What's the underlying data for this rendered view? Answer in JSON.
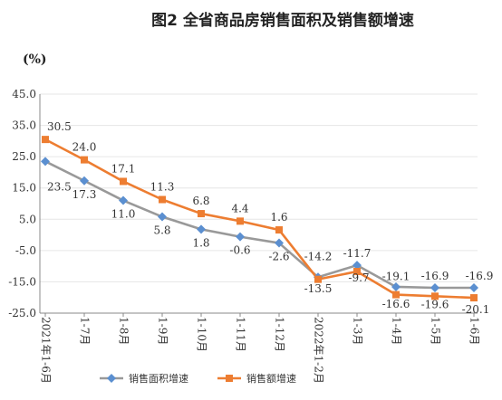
{
  "chart_data": {
    "type": "line",
    "title": "图2 全省商品房销售面积及销售额增速",
    "ylabel": "(%)",
    "xlabel": "",
    "ylim": [
      -25,
      45
    ],
    "yticks": [
      "45.0",
      "35.0",
      "25.0",
      "15.0",
      "5.0",
      "-5.0",
      "-15.0",
      "-25.0"
    ],
    "ytick_values": [
      45,
      35,
      25,
      15,
      5,
      -5,
      -15,
      -25
    ],
    "categories": [
      "2021年1-6月",
      "1-7月",
      "1-8月",
      "1-9月",
      "1-10月",
      "1-11月",
      "1-12月",
      "2022年1-2月",
      "1-3月",
      "1-4月",
      "1-5月",
      "1-6月"
    ],
    "legend_position": "bottom",
    "grid": true,
    "series": [
      {
        "name": "销售面积增速",
        "color": "#5b8fd0",
        "marker": "diamond",
        "values": [
          23.5,
          17.3,
          11.0,
          5.8,
          1.8,
          -0.6,
          -2.6,
          -13.5,
          -9.7,
          -16.6,
          -16.9,
          -16.9
        ],
        "labels": [
          "23.5",
          "17.3",
          "11.0",
          "5.8",
          "1.8",
          "-0.6",
          "-2.6",
          "-13.5",
          "-9.7",
          "-16.6",
          "-16.9",
          "-16.9"
        ]
      },
      {
        "name": "销售额增速",
        "color": "#ed7d31",
        "marker": "square",
        "values": [
          30.5,
          24.0,
          17.1,
          11.3,
          6.8,
          4.4,
          1.6,
          -14.2,
          -11.7,
          -19.1,
          -19.6,
          -20.1
        ],
        "labels": [
          "30.5",
          "24.0",
          "17.1",
          "11.3",
          "6.8",
          "4.4",
          "1.6",
          "-14.2",
          "-11.7",
          "-19.1",
          "-19.6",
          "-20.1"
        ]
      }
    ],
    "area_line_color": "#999999"
  }
}
